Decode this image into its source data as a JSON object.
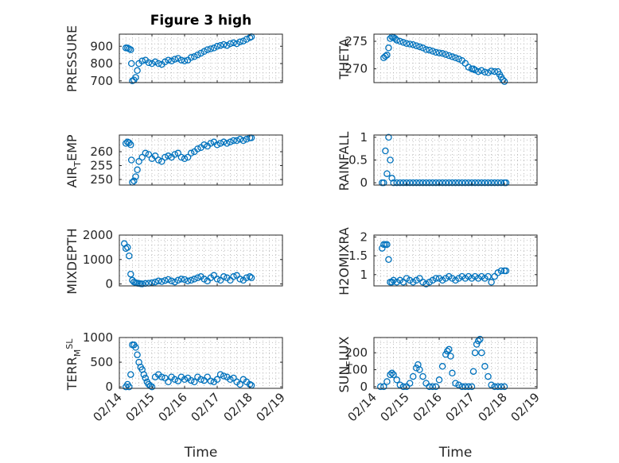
{
  "colors": {
    "marker": "#0072BD",
    "axis": "#262626",
    "grid": "#B0B0B0",
    "background": "#FFFFFF"
  },
  "chart_data": [
    {
      "type": "scatter",
      "title": "Figure 3 high",
      "ylabel": "PRESSURE",
      "xlabel": "",
      "xlim": [
        0,
        5
      ],
      "ylim": [
        690,
        970
      ],
      "yticks": [
        700,
        800,
        900
      ],
      "yticklabels": [
        "700",
        "800",
        "900"
      ],
      "xticklabels": [],
      "grid": true,
      "x": [
        0.2,
        0.25,
        0.3,
        0.35,
        0.37,
        0.4,
        0.45,
        0.5,
        0.55,
        0.6,
        0.7,
        0.8,
        0.9,
        1.0,
        1.1,
        1.2,
        1.3,
        1.4,
        1.5,
        1.6,
        1.7,
        1.8,
        1.9,
        2.0,
        2.1,
        2.2,
        2.3,
        2.4,
        2.5,
        2.6,
        2.7,
        2.8,
        2.9,
        3.0,
        3.1,
        3.2,
        3.3,
        3.4,
        3.5,
        3.6,
        3.7,
        3.8,
        3.9,
        4.0,
        4.05
      ],
      "y": [
        890,
        890,
        885,
        880,
        800,
        700,
        705,
        720,
        760,
        800,
        815,
        820,
        805,
        800,
        810,
        800,
        795,
        810,
        820,
        815,
        825,
        830,
        820,
        815,
        820,
        835,
        840,
        850,
        860,
        870,
        880,
        885,
        890,
        900,
        905,
        910,
        905,
        915,
        920,
        915,
        925,
        930,
        940,
        950,
        955
      ]
    },
    {
      "type": "scatter",
      "title": "",
      "ylabel": "THETA",
      "xlabel": "",
      "xlim": [
        0,
        5
      ],
      "ylim": [
        267.5,
        276.3
      ],
      "yticks": [
        270,
        275
      ],
      "yticklabels": [
        "270",
        "275"
      ],
      "xticklabels": [],
      "grid": true,
      "x": [
        0.3,
        0.35,
        0.4,
        0.45,
        0.5,
        0.55,
        0.6,
        0.65,
        0.7,
        0.8,
        0.9,
        1.0,
        1.1,
        1.2,
        1.3,
        1.4,
        1.5,
        1.6,
        1.7,
        1.8,
        1.9,
        2.0,
        2.1,
        2.2,
        2.3,
        2.4,
        2.5,
        2.6,
        2.7,
        2.8,
        2.9,
        3.0,
        3.05,
        3.1,
        3.2,
        3.3,
        3.4,
        3.5,
        3.6,
        3.7,
        3.8,
        3.85,
        3.9,
        3.95,
        4.0
      ],
      "y": [
        272,
        272.3,
        272.5,
        273.8,
        275.5,
        275.8,
        275.7,
        275.5,
        275.2,
        275.0,
        274.8,
        274.6,
        274.5,
        274.4,
        274.2,
        274.0,
        273.8,
        273.5,
        273.4,
        273.2,
        273.0,
        272.9,
        272.8,
        272.6,
        272.4,
        272.2,
        272.0,
        271.8,
        271.5,
        271.0,
        270.3,
        270.0,
        270.0,
        269.8,
        269.5,
        269.7,
        269.4,
        269.3,
        269.6,
        269.5,
        269.5,
        269.0,
        268.5,
        268.0,
        267.7
      ]
    },
    {
      "type": "scatter",
      "title": "",
      "ylabel": "AIR_TEMP",
      "xlabel": "",
      "xlim": [
        0,
        5
      ],
      "ylim": [
        248,
        266
      ],
      "yticks": [
        250,
        255,
        260
      ],
      "yticklabels": [
        "250",
        "255",
        "260"
      ],
      "xticklabels": [],
      "grid": true,
      "x": [
        0.2,
        0.25,
        0.3,
        0.35,
        0.37,
        0.4,
        0.45,
        0.5,
        0.55,
        0.6,
        0.7,
        0.8,
        0.9,
        1.0,
        1.1,
        1.2,
        1.3,
        1.4,
        1.5,
        1.6,
        1.7,
        1.8,
        1.9,
        2.0,
        2.1,
        2.2,
        2.3,
        2.4,
        2.5,
        2.6,
        2.7,
        2.8,
        2.9,
        3.0,
        3.1,
        3.2,
        3.3,
        3.4,
        3.5,
        3.6,
        3.7,
        3.8,
        3.9,
        4.0,
        4.05
      ],
      "y": [
        263,
        263.5,
        263.2,
        262.5,
        257,
        249,
        249.5,
        251,
        253.5,
        256.5,
        258,
        259.5,
        259,
        257.5,
        258.5,
        257,
        256.5,
        258,
        258.5,
        258,
        259,
        259.5,
        258,
        257.5,
        258,
        259.5,
        260,
        261,
        261.5,
        262.5,
        262,
        263,
        263.5,
        262.5,
        263,
        263.5,
        263,
        263.5,
        264,
        264,
        264.5,
        264,
        264.5,
        265,
        265
      ]
    },
    {
      "type": "scatter",
      "title": "",
      "ylabel": "RAINFALL",
      "xlabel": "",
      "xlim": [
        0,
        5
      ],
      "ylim": [
        -0.05,
        1.05
      ],
      "yticks": [
        0,
        0.5,
        1
      ],
      "yticklabels": [
        "0",
        "0.5",
        "1"
      ],
      "xticklabels": [],
      "grid": true,
      "x": [
        0.25,
        0.3,
        0.35,
        0.4,
        0.45,
        0.5,
        0.55,
        0.6,
        0.7,
        0.8,
        0.9,
        1.0,
        1.1,
        1.2,
        1.3,
        1.4,
        1.5,
        1.6,
        1.7,
        1.8,
        1.9,
        2.0,
        2.1,
        2.2,
        2.3,
        2.4,
        2.5,
        2.6,
        2.7,
        2.8,
        2.9,
        3.0,
        3.1,
        3.2,
        3.3,
        3.4,
        3.5,
        3.6,
        3.7,
        3.8,
        3.9,
        4.0,
        4.05
      ],
      "y": [
        0,
        0,
        0.7,
        0.2,
        1.0,
        0.5,
        0.1,
        0,
        0,
        0,
        0,
        0,
        0,
        0,
        0,
        0,
        0,
        0,
        0,
        0,
        0,
        0,
        0,
        0,
        0,
        0,
        0,
        0,
        0,
        0,
        0,
        0,
        0,
        0,
        0,
        0,
        0,
        0,
        0,
        0,
        0,
        0,
        0
      ]
    },
    {
      "type": "scatter",
      "title": "",
      "ylabel": "MIXDEPTH",
      "xlabel": "",
      "xlim": [
        0,
        5
      ],
      "ylim": [
        -80,
        2000
      ],
      "yticks": [
        0,
        1000,
        2000
      ],
      "yticklabels": [
        "0",
        "1000",
        "2000"
      ],
      "xticklabels": [],
      "grid": true,
      "x": [
        0.15,
        0.2,
        0.25,
        0.3,
        0.35,
        0.4,
        0.45,
        0.5,
        0.55,
        0.6,
        0.65,
        0.7,
        0.8,
        0.9,
        1.0,
        1.1,
        1.2,
        1.3,
        1.4,
        1.5,
        1.6,
        1.7,
        1.8,
        1.9,
        2.0,
        2.1,
        2.2,
        2.3,
        2.4,
        2.5,
        2.6,
        2.7,
        2.8,
        2.9,
        3.0,
        3.1,
        3.2,
        3.3,
        3.4,
        3.5,
        3.6,
        3.7,
        3.8,
        3.9,
        4.0,
        4.05
      ],
      "y": [
        1650,
        1450,
        1500,
        1150,
        400,
        150,
        80,
        50,
        30,
        20,
        10,
        0,
        20,
        30,
        50,
        80,
        120,
        100,
        140,
        180,
        120,
        80,
        150,
        200,
        180,
        120,
        150,
        200,
        250,
        300,
        200,
        120,
        250,
        350,
        200,
        150,
        300,
        250,
        150,
        300,
        350,
        200,
        150,
        250,
        300,
        250
      ]
    },
    {
      "type": "scatter",
      "title": "",
      "ylabel": "H2OMIXRA",
      "xlabel": "",
      "xlim": [
        0,
        5
      ],
      "ylim": [
        0.7,
        2.05
      ],
      "yticks": [
        1,
        1.5,
        2
      ],
      "yticklabels": [
        "1",
        "1.5",
        "2"
      ],
      "xticklabels": [],
      "grid": true,
      "x": [
        0.25,
        0.3,
        0.35,
        0.4,
        0.45,
        0.5,
        0.55,
        0.6,
        0.7,
        0.8,
        0.9,
        1.0,
        1.1,
        1.2,
        1.3,
        1.4,
        1.5,
        1.6,
        1.7,
        1.8,
        1.9,
        2.0,
        2.1,
        2.2,
        2.3,
        2.4,
        2.5,
        2.6,
        2.7,
        2.8,
        2.9,
        3.0,
        3.1,
        3.2,
        3.3,
        3.4,
        3.5,
        3.6,
        3.7,
        3.8,
        3.9,
        4.0,
        4.05
      ],
      "y": [
        1.7,
        1.8,
        1.8,
        1.8,
        1.4,
        0.8,
        0.8,
        0.85,
        0.8,
        0.85,
        0.8,
        0.9,
        0.85,
        0.8,
        0.85,
        0.9,
        0.8,
        0.75,
        0.8,
        0.85,
        0.9,
        0.9,
        0.85,
        0.9,
        0.95,
        0.9,
        0.85,
        0.9,
        0.95,
        0.9,
        0.95,
        0.9,
        0.95,
        0.9,
        0.95,
        0.9,
        0.95,
        0.8,
        0.95,
        1.05,
        1.1,
        1.1,
        1.1
      ]
    },
    {
      "type": "scatter",
      "title": "",
      "ylabel": "TERR_MSL",
      "xlabel": "Time",
      "xlim": [
        0,
        5
      ],
      "ylim": [
        -30,
        1000
      ],
      "yticks": [
        0,
        500,
        1000
      ],
      "yticklabels": [
        "0",
        "500",
        "1000"
      ],
      "xticks": [
        0,
        1,
        2,
        3,
        4,
        5
      ],
      "xticklabels": [
        "02/14",
        "02/15",
        "02/16",
        "02/17",
        "02/18",
        "02/19"
      ],
      "grid": true,
      "x": [
        0.2,
        0.25,
        0.3,
        0.35,
        0.4,
        0.45,
        0.5,
        0.55,
        0.6,
        0.65,
        0.7,
        0.75,
        0.8,
        0.85,
        0.9,
        0.95,
        1.0,
        1.1,
        1.2,
        1.3,
        1.4,
        1.5,
        1.6,
        1.7,
        1.8,
        1.9,
        2.0,
        2.1,
        2.2,
        2.3,
        2.4,
        2.5,
        2.6,
        2.7,
        2.8,
        2.9,
        3.0,
        3.1,
        3.2,
        3.3,
        3.4,
        3.5,
        3.6,
        3.7,
        3.8,
        3.9,
        4.0,
        4.05
      ],
      "y": [
        0,
        50,
        0,
        250,
        850,
        850,
        800,
        650,
        500,
        400,
        350,
        250,
        180,
        100,
        50,
        20,
        0,
        200,
        250,
        200,
        180,
        100,
        200,
        150,
        120,
        200,
        150,
        180,
        130,
        100,
        200,
        150,
        130,
        200,
        120,
        100,
        150,
        250,
        220,
        200,
        150,
        180,
        100,
        50,
        150,
        100,
        50,
        30
      ]
    },
    {
      "type": "scatter",
      "title": "",
      "ylabel": "SUN_FLUX",
      "xlabel": "Time",
      "xlim": [
        0,
        5
      ],
      "ylim": [
        -10,
        290
      ],
      "yticks": [
        0,
        100,
        200
      ],
      "yticklabels": [
        "0",
        "100",
        "200"
      ],
      "xticks": [
        0,
        1,
        2,
        3,
        4,
        5
      ],
      "xticklabels": [
        "02/14",
        "02/15",
        "02/16",
        "02/17",
        "02/18",
        "02/19"
      ],
      "grid": true,
      "x": [
        0.2,
        0.3,
        0.4,
        0.5,
        0.55,
        0.6,
        0.7,
        0.8,
        0.9,
        1.0,
        1.1,
        1.2,
        1.3,
        1.35,
        1.4,
        1.5,
        1.6,
        1.7,
        1.8,
        1.9,
        2.0,
        2.1,
        2.2,
        2.25,
        2.3,
        2.35,
        2.4,
        2.5,
        2.6,
        2.7,
        2.8,
        2.9,
        3.0,
        3.05,
        3.1,
        3.15,
        3.2,
        3.25,
        3.3,
        3.4,
        3.5,
        3.6,
        3.7,
        3.8,
        3.9,
        4.0
      ],
      "y": [
        0,
        0,
        30,
        70,
        80,
        70,
        40,
        10,
        0,
        0,
        20,
        60,
        110,
        130,
        100,
        60,
        20,
        0,
        0,
        0,
        40,
        120,
        190,
        210,
        220,
        180,
        80,
        20,
        10,
        0,
        0,
        0,
        0,
        90,
        200,
        250,
        270,
        280,
        200,
        120,
        60,
        10,
        0,
        0,
        0,
        0
      ]
    }
  ]
}
